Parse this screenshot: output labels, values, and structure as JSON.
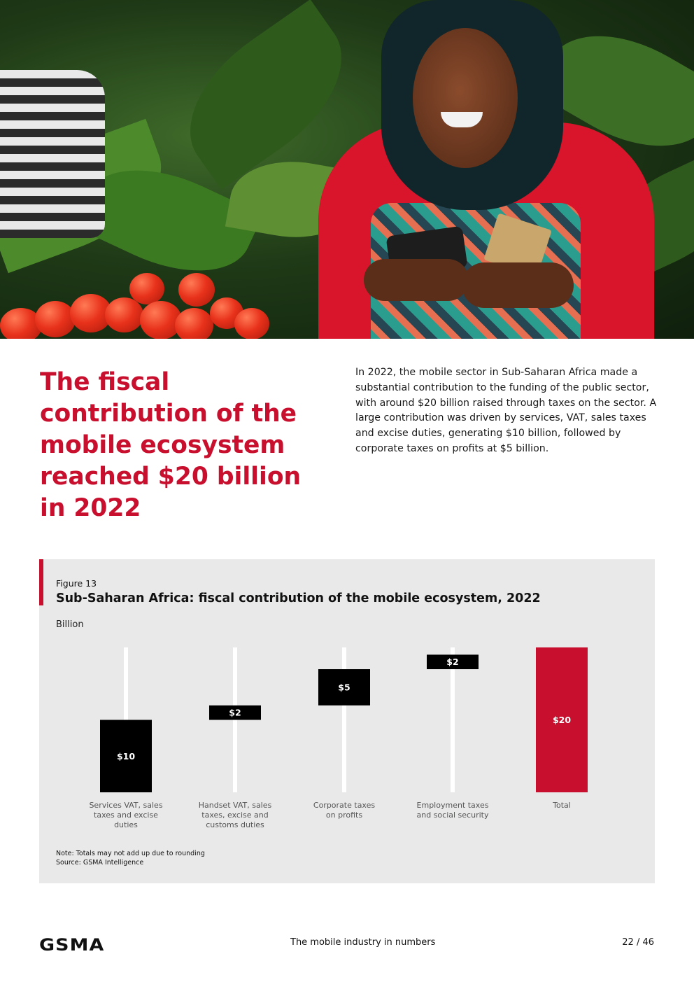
{
  "heading": "The fiscal contribution of the mobile ecosystem reached $20 billion in 2022",
  "intro": "In 2022, the mobile sector in Sub-Saharan Africa made a substantial contribution to the funding of the public sector, with around $20 billion raised through taxes on the sector. A large contribution was driven by services, VAT, sales taxes and excise duties, generating $10 billion, followed by corporate taxes on profits at $5 billion.",
  "figure": {
    "label": "Figure 13",
    "title": "Sub-Saharan Africa: fiscal contribution of the mobile ecosystem, 2022",
    "unit": "Billion",
    "note": "Note: Totals may not add up due to rounding",
    "source": "Source: GSMA Intelligence"
  },
  "chart_data": {
    "type": "bar",
    "subtype": "waterfall",
    "title": "Sub-Saharan Africa: fiscal contribution of the mobile ecosystem, 2022",
    "ylabel": "Billion",
    "categories": [
      [
        "Services VAT, sales",
        "taxes and excise",
        "duties"
      ],
      [
        "Handset VAT, sales",
        "taxes, excise and",
        "customs duties"
      ],
      [
        "Corporate taxes",
        "on profits"
      ],
      [
        "Employment taxes",
        "and social security"
      ],
      [
        "Total"
      ]
    ],
    "values": [
      10,
      2,
      5,
      2,
      20
    ],
    "labels": [
      "$10",
      "$2",
      "$5",
      "$2",
      "$20"
    ],
    "colors": {
      "component": "#000000",
      "total": "#c8102e",
      "guide": "#ffffff"
    },
    "grid": false
  },
  "footer": {
    "logo": "GSMA",
    "title": "The mobile industry in numbers",
    "page": "22 / 46"
  }
}
